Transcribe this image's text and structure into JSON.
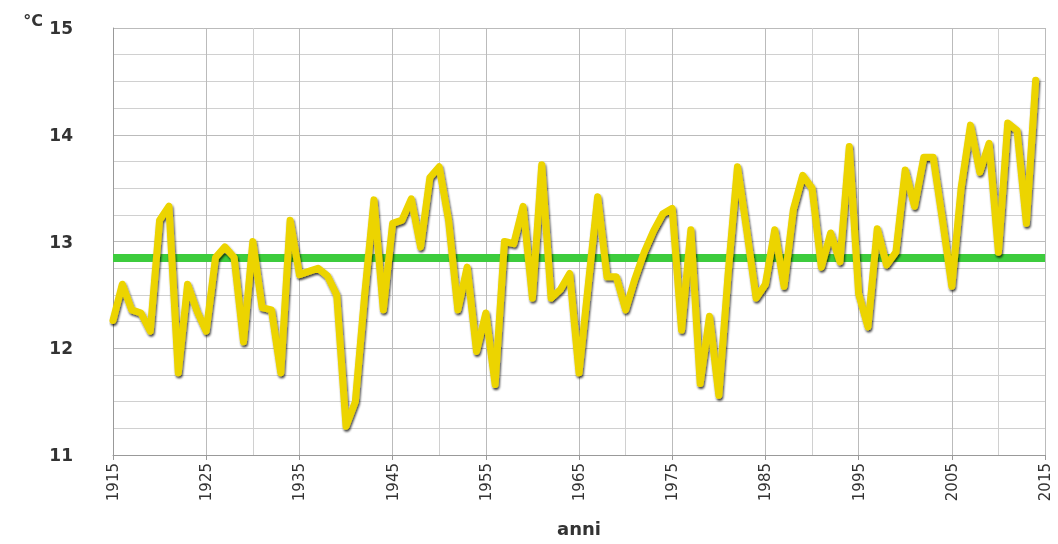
{
  "chart_data": {
    "type": "line",
    "xlabel": "anni",
    "ylabel": "°C",
    "x": [
      1915,
      1916,
      1917,
      1918,
      1919,
      1920,
      1921,
      1922,
      1923,
      1924,
      1925,
      1926,
      1927,
      1928,
      1929,
      1930,
      1931,
      1932,
      1933,
      1934,
      1935,
      1936,
      1937,
      1938,
      1939,
      1940,
      1941,
      1942,
      1943,
      1944,
      1945,
      1946,
      1947,
      1948,
      1949,
      1950,
      1951,
      1952,
      1953,
      1954,
      1955,
      1956,
      1957,
      1958,
      1959,
      1960,
      1961,
      1962,
      1963,
      1964,
      1965,
      1966,
      1967,
      1968,
      1969,
      1970,
      1971,
      1972,
      1973,
      1974,
      1975,
      1976,
      1977,
      1978,
      1979,
      1980,
      1981,
      1982,
      1983,
      1984,
      1985,
      1986,
      1987,
      1988,
      1989,
      1990,
      1991,
      1992,
      1993,
      1994,
      1995,
      1996,
      1997,
      1998,
      1999,
      2000,
      2001,
      2002,
      2003,
      2004,
      2005,
      2006,
      2007,
      2008,
      2009,
      2010,
      2011,
      2012,
      2013,
      2014
    ],
    "series": [
      {
        "color": "#ecd400",
        "values": [
          12.26,
          12.6,
          12.36,
          12.33,
          12.16,
          13.2,
          13.33,
          11.77,
          12.6,
          12.35,
          12.16,
          12.85,
          12.95,
          12.85,
          12.06,
          13.0,
          12.38,
          12.36,
          11.77,
          13.2,
          12.69,
          12.72,
          12.75,
          12.68,
          12.5,
          11.27,
          11.5,
          12.5,
          13.39,
          12.36,
          13.17,
          13.2,
          13.4,
          12.95,
          13.6,
          13.7,
          13.2,
          12.36,
          12.76,
          11.97,
          12.33,
          11.66,
          13.0,
          12.98,
          13.33,
          12.47,
          13.72,
          12.47,
          12.55,
          12.7,
          11.77,
          12.6,
          13.42,
          12.67,
          12.67,
          12.36,
          12.65,
          12.9,
          13.1,
          13.26,
          13.31,
          12.17,
          13.11,
          11.67,
          12.3,
          11.56,
          12.7,
          13.7,
          13.1,
          12.47,
          12.6,
          13.11,
          12.58,
          13.3,
          13.62,
          13.5,
          12.76,
          13.08,
          12.81,
          13.89,
          12.51,
          12.2,
          13.12,
          12.78,
          12.9,
          13.67,
          13.33,
          13.79,
          13.79,
          13.2,
          12.58,
          13.5,
          14.09,
          13.65,
          13.92,
          12.9,
          14.11,
          14.04,
          13.17,
          14.51
        ]
      }
    ],
    "ref_lines": [
      {
        "axis": "y",
        "value": 12.85,
        "color": "#3dcc3d"
      }
    ],
    "xlim": [
      1915,
      2015
    ],
    "xticks": [
      1915,
      1925,
      1935,
      1945,
      1955,
      1965,
      1975,
      1985,
      1995,
      2005,
      2015
    ],
    "ylim": [
      11,
      15
    ],
    "yticks": [
      11,
      12,
      13,
      14,
      15
    ],
    "grid": true,
    "marker": "none",
    "line_style": "solid"
  }
}
